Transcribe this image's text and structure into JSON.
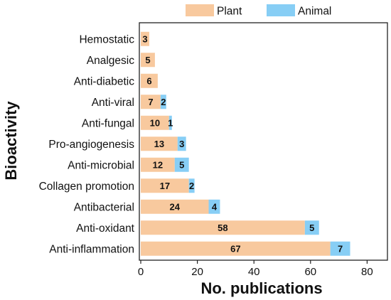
{
  "chart_data": {
    "type": "bar",
    "orientation": "horizontal",
    "stacked": true,
    "categories": [
      "Hemostatic",
      "Analgesic",
      "Anti-diabetic",
      "Anti-viral",
      "Anti-fungal",
      "Pro-angiogenesis",
      "Anti-microbial",
      "Collagen promotion",
      "Antibacterial",
      "Anti-oxidant",
      "Anti-inflammation"
    ],
    "series": [
      {
        "name": "Plant",
        "color": "#f8c99e",
        "values": [
          3,
          5,
          6,
          7,
          10,
          13,
          12,
          17,
          24,
          58,
          67
        ]
      },
      {
        "name": "Animal",
        "color": "#87cef5",
        "values": [
          0,
          0,
          0,
          2,
          1,
          3,
          5,
          2,
          4,
          5,
          7
        ]
      }
    ],
    "xlabel": "No. publications",
    "ylabel": "Bioactivity",
    "xlim": [
      0,
      92
    ],
    "xticks": [
      0,
      20,
      40,
      60,
      80
    ],
    "legend_position": "top-right",
    "grid": false
  }
}
